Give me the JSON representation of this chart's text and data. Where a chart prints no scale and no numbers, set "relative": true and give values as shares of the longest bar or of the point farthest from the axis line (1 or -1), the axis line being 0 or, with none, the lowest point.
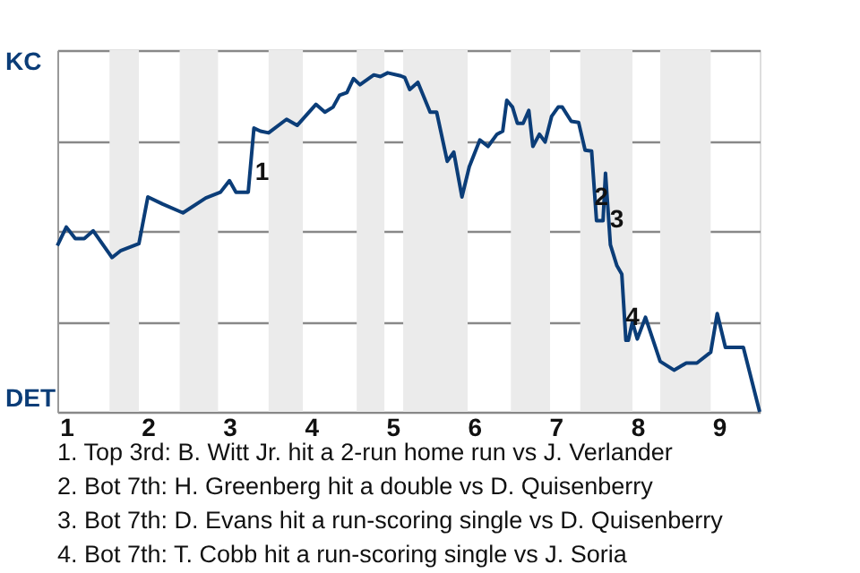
{
  "chart_data": {
    "type": "line",
    "relative": true,
    "x": [
      0.89,
      1,
      1.11,
      1.22,
      1.33,
      1.56,
      1.67,
      1.89,
      2,
      2.18,
      2.43,
      2.71,
      2.89,
      3,
      3.08,
      3.23,
      3.3,
      3.38,
      3.48,
      3.7,
      3.83,
      4.06,
      4.17,
      4.27,
      4.35,
      4.44,
      4.52,
      4.6,
      4.77,
      4.85,
      4.94,
      5.1,
      5.15,
      5.21,
      5.31,
      5.46,
      5.54,
      5.67,
      5.75,
      5.85,
      5.94,
      6.07,
      6.17,
      6.28,
      6.35,
      6.4,
      6.47,
      6.53,
      6.6,
      6.67,
      6.72,
      6.8,
      6.87,
      6.95,
      7.03,
      7.08,
      7.19,
      7.28,
      7.36,
      7.44,
      7.5,
      7.58,
      7.61,
      7.67,
      7.75,
      7.81,
      7.86,
      7.89,
      7.94,
      8,
      8.1,
      8.28,
      8.45,
      8.6,
      8.73,
      8.9,
      8.98,
      9.08,
      9.3,
      9.5
    ],
    "values": [
      0.49,
      0.545,
      0.511,
      0.511,
      0.534,
      0.455,
      0.476,
      0.496,
      0.634,
      0.613,
      0.587,
      0.631,
      0.648,
      0.682,
      0.648,
      0.648,
      0.837,
      0.828,
      0.823,
      0.863,
      0.845,
      0.907,
      0.884,
      0.899,
      0.934,
      0.942,
      0.983,
      0.965,
      0.994,
      0.989,
      1,
      0.991,
      0.986,
      0.951,
      0.972,
      0.884,
      0.884,
      0.739,
      0.766,
      0.634,
      0.723,
      0.802,
      0.783,
      0.819,
      0.828,
      0.919,
      0.899,
      0.851,
      0.851,
      0.889,
      0.783,
      0.819,
      0.796,
      0.872,
      0.899,
      0.899,
      0.857,
      0.854,
      0.772,
      0.769,
      0.564,
      0.564,
      0.704,
      0.493,
      0.431,
      0.406,
      0.211,
      0.211,
      0.265,
      0.215,
      0.279,
      0.149,
      0.123,
      0.144,
      0.144,
      0.176,
      0.29,
      0.19,
      0.19,
      0
    ],
    "color": "#0b3d78",
    "line_style": "solid",
    "marker": "none",
    "xlim": [
      0.89,
      9.5
    ],
    "xticks": [
      1,
      2,
      3,
      4,
      5,
      6,
      7,
      8,
      9
    ],
    "grid": "y",
    "bands": [
      {
        "axis": "x",
        "from": 1.53,
        "to": 1.89,
        "color": "#ebebeb"
      },
      {
        "axis": "x",
        "from": 2.39,
        "to": 2.86,
        "color": "#ebebeb"
      },
      {
        "axis": "x",
        "from": 3.48,
        "to": 3.9,
        "color": "#ebebeb"
      },
      {
        "axis": "x",
        "from": 4.56,
        "to": 4.9,
        "color": "#ebebeb"
      },
      {
        "axis": "x",
        "from": 5.13,
        "to": 5.92,
        "color": "#ebebeb"
      },
      {
        "axis": "x",
        "from": 6.45,
        "to": 6.93,
        "color": "#ebebeb"
      },
      {
        "axis": "x",
        "from": 7.3,
        "to": 7.94,
        "color": "#ebebeb"
      },
      {
        "axis": "x",
        "from": 8.28,
        "to": 8.9,
        "color": "#ebebeb"
      }
    ],
    "annotations": [
      "KC",
      "DET",
      {
        "text": "1",
        "x": 3.4,
        "y": 0.704
      },
      {
        "text": "2",
        "x": 7.56,
        "y": 0.63
      },
      {
        "text": "3",
        "x": 7.75,
        "y": 0.566
      },
      {
        "text": "4",
        "x": 7.94,
        "y": 0.277
      },
      "1. Top 3rd: B. Witt Jr. hit a 2-run home run vs J. Verlander",
      "2. Bot 7th: H. Greenberg hit a double vs D. Quisenberry",
      "3. Bot 7th: D. Evans hit a run-scoring single vs D. Quisenberry",
      "4. Bot 7th: T. Cobb hit a run-scoring single vs J. Soria"
    ]
  }
}
